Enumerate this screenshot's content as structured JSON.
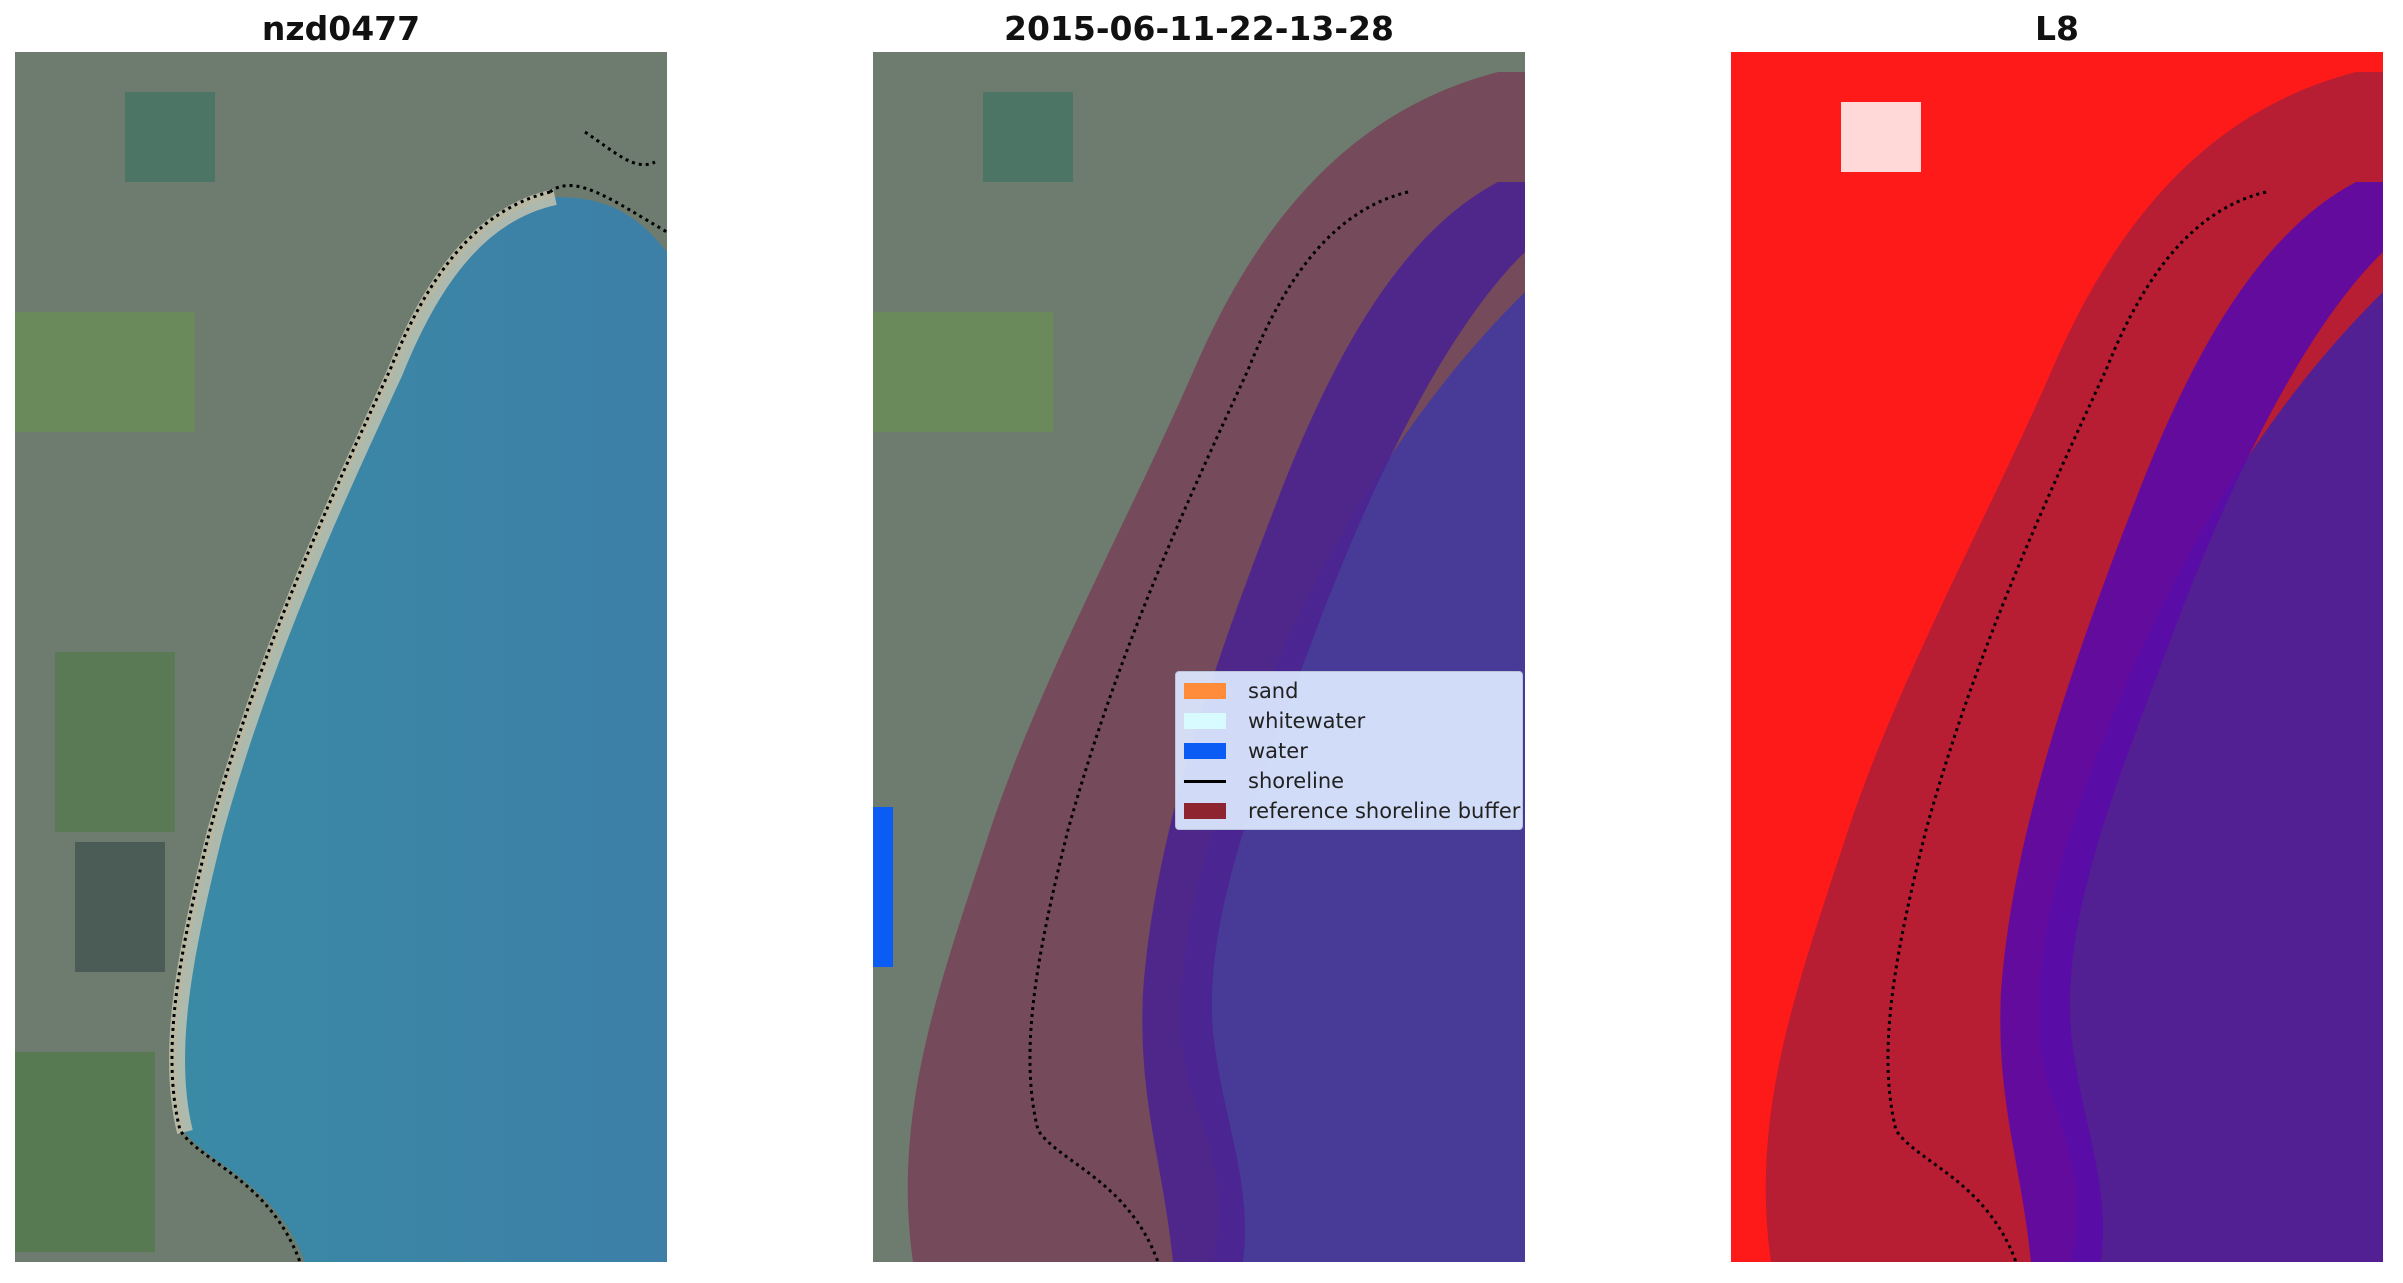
{
  "panels": [
    {
      "title": "nzd0477"
    },
    {
      "title": "2015-06-11-22-13-28"
    },
    {
      "title": "L8"
    }
  ],
  "legend": {
    "items": [
      {
        "label": "sand",
        "color": "#ff8c3a",
        "kind": "swatch"
      },
      {
        "label": "whitewater",
        "color": "#d7fbff",
        "kind": "swatch"
      },
      {
        "label": "water",
        "color": "#0a5cf5",
        "kind": "swatch"
      },
      {
        "label": "shoreline",
        "color": "#000000",
        "kind": "line"
      },
      {
        "label": "reference shoreline buffer",
        "color": "#8e2430",
        "kind": "swatch"
      }
    ]
  },
  "colors": {
    "land": "#6f7d6c",
    "ocean": "#3f85a6",
    "water_class": "#0a5cf5",
    "buffer_overlay": "#9b2d6b",
    "index_positive": "#ff1a1a",
    "index_negative": "#2020ee"
  }
}
